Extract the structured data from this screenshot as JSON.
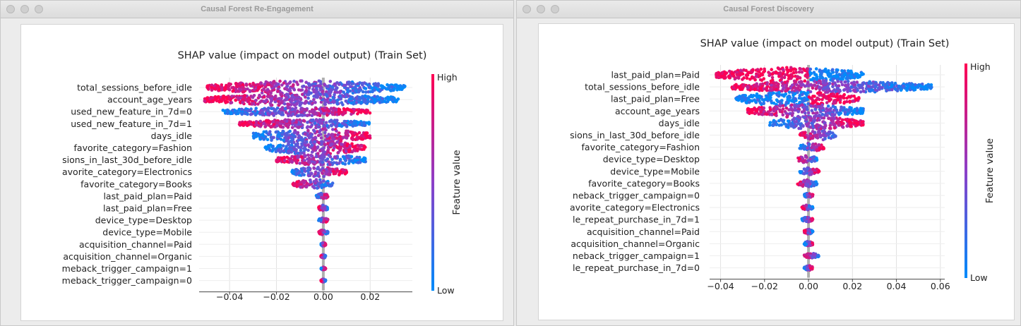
{
  "windows": [
    {
      "title": "Causal Forest Re-Engagement",
      "chart_data": {
        "type": "scatter",
        "subtype": "shap-beeswarm",
        "title": "SHAP value (impact on model output) (Train Set)",
        "xlabel": "",
        "colorbar_label": "Feature value",
        "colorbar_high": "High",
        "colorbar_low": "Low",
        "colors": {
          "low": "#008bfb",
          "mid": "#8c3fc8",
          "high": "#ff0052",
          "zero_line": "#999999"
        },
        "xlim": [
          -0.053,
          0.038
        ],
        "xticks": [
          -0.04,
          -0.02,
          0.0,
          0.02
        ],
        "xtick_labels": [
          "−0.04",
          "−0.02",
          "0.00",
          "0.02"
        ],
        "grid": true,
        "features": [
          {
            "name": "total_sessions_before_idle",
            "min": -0.05,
            "max": 0.035,
            "low_side": "right",
            "spread": 0.55
          },
          {
            "name": "account_age_years",
            "min": -0.051,
            "max": 0.032,
            "low_side": "right",
            "spread": 0.5
          },
          {
            "name": "used_new_feature_in_7d=0",
            "min": -0.043,
            "max": 0.02,
            "low_side": "left",
            "spread": 0.35
          },
          {
            "name": "used_new_feature_in_7d=1",
            "min": -0.036,
            "max": 0.02,
            "low_side": "right",
            "spread": 0.35
          },
          {
            "name": "days_idle",
            "min": -0.03,
            "max": 0.02,
            "low_side": "left",
            "spread": 0.6
          },
          {
            "name": "favorite_category=Fashion",
            "min": -0.025,
            "max": 0.018,
            "low_side": "left",
            "spread": 0.55
          },
          {
            "name": "sions_in_last_30d_before_idle",
            "min": -0.02,
            "max": 0.018,
            "low_side": "right",
            "spread": 0.45
          },
          {
            "name": "avorite_category=Electronics",
            "min": -0.014,
            "max": 0.01,
            "low_side": "left",
            "spread": 0.4
          },
          {
            "name": "favorite_category=Books",
            "min": -0.013,
            "max": 0.004,
            "low_side": "right",
            "spread": 0.4
          },
          {
            "name": "last_paid_plan=Paid",
            "min": -0.003,
            "max": 0.002,
            "low_side": "left",
            "spread": 0.25
          },
          {
            "name": "last_paid_plan=Free",
            "min": -0.002,
            "max": 0.002,
            "low_side": "right",
            "spread": 0.25
          },
          {
            "name": "device_type=Desktop",
            "min": -0.002,
            "max": 0.002,
            "low_side": "left",
            "spread": 0.2
          },
          {
            "name": "device_type=Mobile",
            "min": -0.002,
            "max": 0.002,
            "low_side": "right",
            "spread": 0.2
          },
          {
            "name": "acquisition_channel=Paid",
            "min": -0.001,
            "max": 0.001,
            "low_side": "left",
            "spread": 0.15
          },
          {
            "name": "acquisition_channel=Organic",
            "min": -0.001,
            "max": 0.001,
            "low_side": "right",
            "spread": 0.15
          },
          {
            "name": "meback_trigger_campaign=1",
            "min": -0.001,
            "max": 0.001,
            "low_side": "left",
            "spread": 0.12
          },
          {
            "name": "meback_trigger_campaign=0",
            "min": -0.001,
            "max": 0.001,
            "low_side": "right",
            "spread": 0.12
          }
        ]
      }
    },
    {
      "title": "Causal Forest Discovery",
      "chart_data": {
        "type": "scatter",
        "subtype": "shap-beeswarm",
        "title": "SHAP value (impact on model output) (Train Set)",
        "xlabel": "",
        "colorbar_label": "Feature value",
        "colorbar_high": "High",
        "colorbar_low": "Low",
        "colors": {
          "low": "#008bfb",
          "mid": "#8c3fc8",
          "high": "#ff0052",
          "zero_line": "#999999"
        },
        "xlim": [
          -0.045,
          0.062
        ],
        "xticks": [
          -0.04,
          -0.02,
          0.0,
          0.02,
          0.04,
          0.06
        ],
        "xtick_labels": [
          "−0.04",
          "−0.02",
          "0.00",
          "0.02",
          "0.04",
          "0.06"
        ],
        "grid": true,
        "features": [
          {
            "name": "last_paid_plan=Paid",
            "min": -0.042,
            "max": 0.025,
            "low_side": "right",
            "spread": 0.6,
            "split": true
          },
          {
            "name": "total_sessions_before_idle",
            "min": -0.035,
            "max": 0.056,
            "low_side": "right",
            "spread": 0.5
          },
          {
            "name": "last_paid_plan=Free",
            "min": -0.033,
            "max": 0.023,
            "low_side": "left",
            "spread": 0.6,
            "split": true
          },
          {
            "name": "account_age_years",
            "min": -0.028,
            "max": 0.025,
            "low_side": "right",
            "spread": 0.55
          },
          {
            "name": "days_idle",
            "min": -0.018,
            "max": 0.025,
            "low_side": "left",
            "spread": 0.5
          },
          {
            "name": "sions_in_last_30d_before_idle",
            "min": -0.004,
            "max": 0.013,
            "low_side": "right",
            "spread": 0.4
          },
          {
            "name": "favorite_category=Fashion",
            "min": -0.004,
            "max": 0.007,
            "low_side": "left",
            "spread": 0.35
          },
          {
            "name": "device_type=Desktop",
            "min": -0.005,
            "max": 0.004,
            "low_side": "right",
            "spread": 0.3
          },
          {
            "name": "device_type=Mobile",
            "min": -0.004,
            "max": 0.005,
            "low_side": "left",
            "spread": 0.3
          },
          {
            "name": "favorite_category=Books",
            "min": -0.005,
            "max": 0.004,
            "low_side": "right",
            "spread": 0.3
          },
          {
            "name": "neback_trigger_campaign=0",
            "min": -0.002,
            "max": 0.002,
            "low_side": "left",
            "spread": 0.2
          },
          {
            "name": "avorite_category=Electronics",
            "min": -0.003,
            "max": 0.002,
            "low_side": "right",
            "spread": 0.2
          },
          {
            "name": "le_repeat_purchase_in_7d=1",
            "min": -0.003,
            "max": 0.002,
            "low_side": "left",
            "spread": 0.2
          },
          {
            "name": "acquisition_channel=Paid",
            "min": -0.002,
            "max": 0.002,
            "low_side": "right",
            "spread": 0.2
          },
          {
            "name": "acquisition_channel=Organic",
            "min": -0.002,
            "max": 0.002,
            "low_side": "left",
            "spread": 0.2
          },
          {
            "name": "neback_trigger_campaign=1",
            "min": -0.002,
            "max": 0.005,
            "low_side": "right",
            "spread": 0.2
          },
          {
            "name": "le_repeat_purchase_in_7d=0",
            "min": -0.002,
            "max": 0.002,
            "low_side": "left",
            "spread": 0.2
          }
        ]
      }
    }
  ]
}
